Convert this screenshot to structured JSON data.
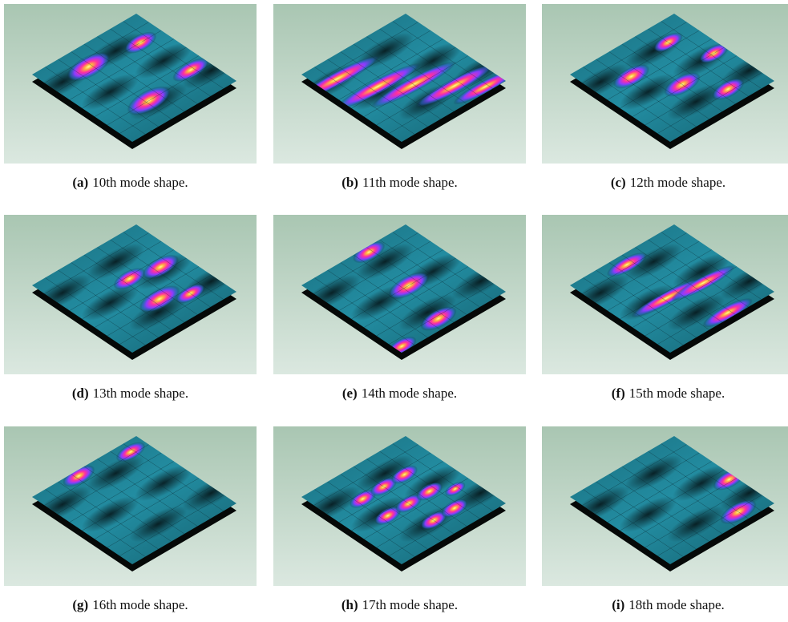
{
  "figure": {
    "panels": [
      {
        "label": "(a)",
        "caption": "10th mode shape."
      },
      {
        "label": "(b)",
        "caption": "11th mode shape."
      },
      {
        "label": "(c)",
        "caption": "12th mode shape."
      },
      {
        "label": "(d)",
        "caption": "13th mode shape."
      },
      {
        "label": "(e)",
        "caption": "14th mode shape."
      },
      {
        "label": "(f)",
        "caption": "15th mode shape."
      },
      {
        "label": "(g)",
        "caption": "16th mode shape."
      },
      {
        "label": "(h)",
        "caption": "17th mode shape."
      },
      {
        "label": "(i)",
        "caption": "18th mode shape."
      }
    ]
  }
}
